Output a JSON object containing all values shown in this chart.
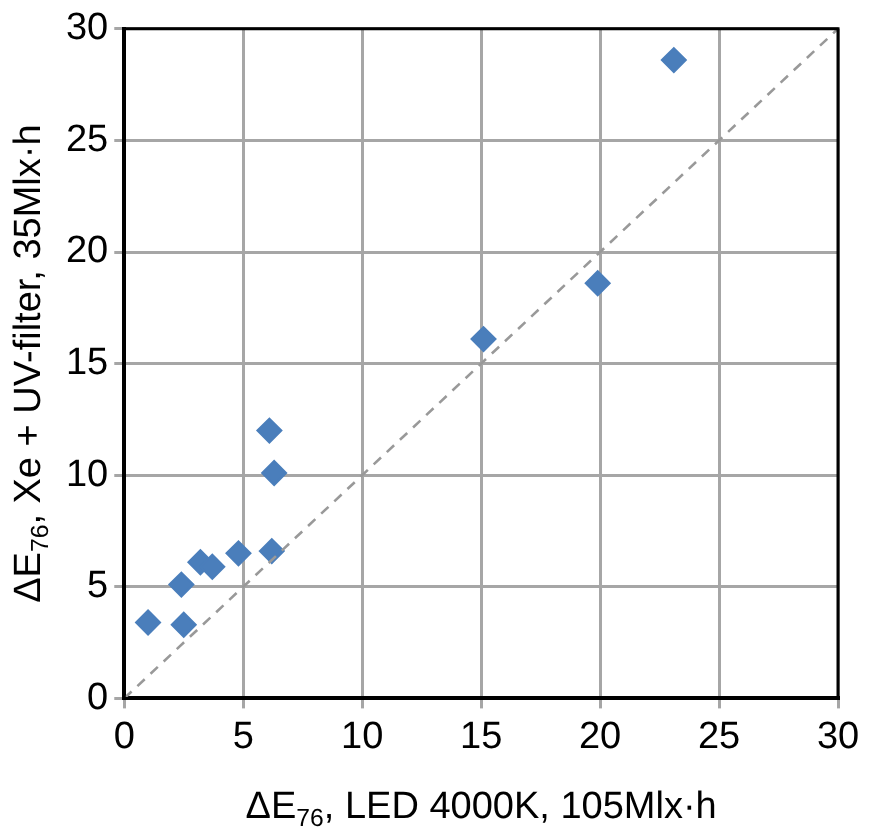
{
  "chart_data": {
    "type": "scatter",
    "xlabel": "ΔE$_{76}$, LED 4000K, 105Mlx·h",
    "ylabel": "ΔE$_{76}$, Xe + UV-filter, 35Mlx·h",
    "xlim": [
      0,
      30
    ],
    "ylim": [
      0,
      30
    ],
    "xticks": [
      0,
      5,
      10,
      15,
      20,
      25,
      30
    ],
    "yticks": [
      0,
      5,
      10,
      15,
      20,
      25,
      30
    ],
    "grid": true,
    "marker": "diamond",
    "series": [
      {
        "type": "scatter",
        "color": "#4a7ebb",
        "x": [
          1.0,
          2.5,
          2.4,
          3.2,
          3.7,
          4.8,
          6.2,
          6.3,
          6.1,
          15.1,
          19.9,
          23.1
        ],
        "values": [
          3.4,
          3.3,
          5.1,
          6.1,
          5.9,
          6.5,
          6.6,
          10.1,
          12.0,
          16.1,
          18.6,
          28.6
        ]
      },
      {
        "type": "line",
        "color": "#999999",
        "line_style": "dashed",
        "marker": "none",
        "x": [
          0,
          30
        ],
        "values": [
          0,
          30
        ]
      }
    ]
  }
}
